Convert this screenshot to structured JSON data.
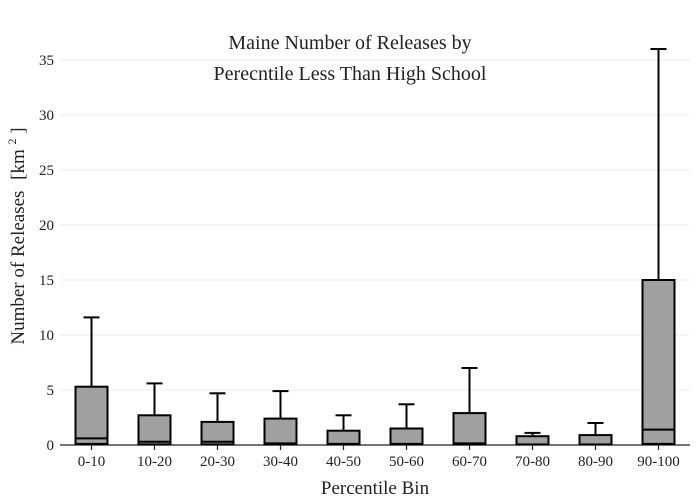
{
  "chart_data": {
    "type": "box",
    "title_lines": [
      "Maine Number of Releases by",
      "Perecntile Less Than High School"
    ],
    "xlabel": "Percentile Bin",
    "ylabel": "Number of Releases",
    "ylabel_unit_base": "[km",
    "ylabel_unit_sup": "2",
    "ylabel_unit_end": "]",
    "ylim": [
      0,
      37
    ],
    "yticks": [
      0,
      5,
      10,
      15,
      20,
      25,
      30,
      35
    ],
    "grid": true,
    "categories": [
      "0-10",
      "10-20",
      "20-30",
      "30-40",
      "40-50",
      "50-60",
      "60-70",
      "70-80",
      "80-90",
      "90-100"
    ],
    "boxes": [
      {
        "min": 0,
        "q1": 0.1,
        "median": 0.6,
        "q3": 5.3,
        "max": 11.6
      },
      {
        "min": 0,
        "q1": 0.05,
        "median": 0.3,
        "q3": 2.7,
        "max": 5.6
      },
      {
        "min": 0,
        "q1": 0.05,
        "median": 0.3,
        "q3": 2.1,
        "max": 4.7
      },
      {
        "min": 0,
        "q1": 0.05,
        "median": 0.15,
        "q3": 2.4,
        "max": 4.9
      },
      {
        "min": 0,
        "q1": 0.05,
        "median": 0.1,
        "q3": 1.3,
        "max": 2.7
      },
      {
        "min": 0,
        "q1": 0.05,
        "median": 0.1,
        "q3": 1.5,
        "max": 3.7
      },
      {
        "min": 0,
        "q1": 0.05,
        "median": 0.15,
        "q3": 2.9,
        "max": 7.0
      },
      {
        "min": 0,
        "q1": 0.05,
        "median": 0.05,
        "q3": 0.8,
        "max": 1.1
      },
      {
        "min": 0,
        "q1": 0.05,
        "median": 0.05,
        "q3": 0.9,
        "max": 2.0
      },
      {
        "min": 0,
        "q1": 0.1,
        "median": 1.4,
        "q3": 15.0,
        "max": 36.0
      }
    ],
    "colors": {
      "box_fill": "#a0a0a0",
      "box_edge": "#000000",
      "grid": "#ececec"
    }
  }
}
